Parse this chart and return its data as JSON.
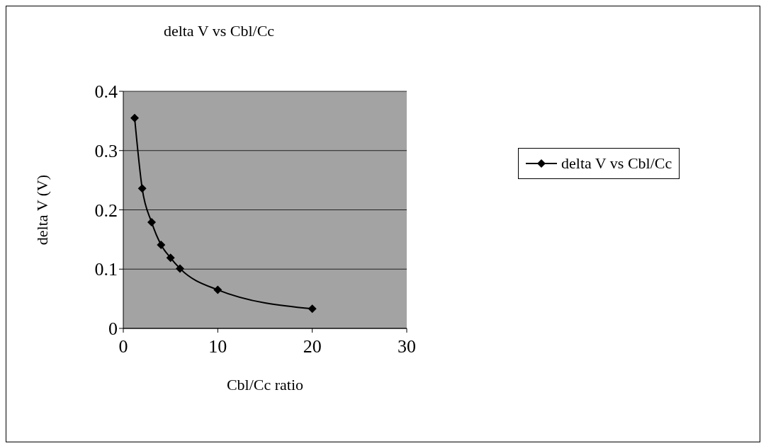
{
  "chart_data": {
    "type": "line",
    "title": "delta V vs Cbl/Cc",
    "xlabel": "Cbl/Cc ratio",
    "ylabel": "delta V (V)",
    "x": [
      1.2,
      2,
      3,
      4,
      5,
      6,
      10,
      20
    ],
    "series": [
      {
        "name": "delta V vs Cbl/Cc",
        "color": "#000000",
        "values": [
          0.355,
          0.236,
          0.179,
          0.141,
          0.119,
          0.101,
          0.065,
          0.033
        ]
      }
    ],
    "xlim": [
      0,
      30
    ],
    "xticks": [
      0,
      10,
      20,
      30
    ],
    "ylim": [
      0,
      0.4
    ],
    "yticks": [
      0,
      0.1,
      0.2,
      0.3,
      0.4
    ],
    "grid": "y",
    "legend": "right",
    "marker": "diamond",
    "line_style": "solid"
  }
}
